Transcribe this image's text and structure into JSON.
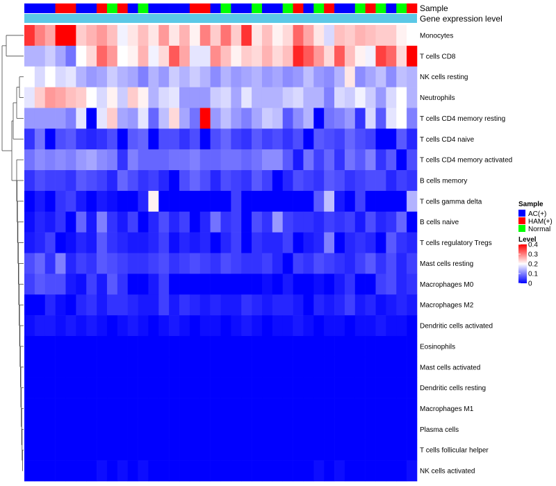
{
  "chart_data": {
    "type": "heatmap",
    "annotation_labels": [
      "Sample",
      "Gene expression level"
    ],
    "sample_groups": [
      "A",
      "A",
      "A",
      "H",
      "H",
      "A",
      "A",
      "H",
      "N",
      "H",
      "A",
      "N",
      "A",
      "A",
      "A",
      "A",
      "H",
      "H",
      "A",
      "N",
      "A",
      "A",
      "N",
      "A",
      "A",
      "N",
      "H",
      "A",
      "N",
      "H",
      "A",
      "A",
      "N",
      "H",
      "N",
      "A",
      "N",
      "H"
    ],
    "rows": [
      "Monocytes",
      "T cells CD8",
      "NK cells resting",
      "Neutrophils",
      "T cells CD4 memory resting",
      "T cells CD4 naive",
      "T cells CD4 memory activated",
      "B cells memory",
      "T cells gamma delta",
      "B cells naive",
      "T cells regulatory  Tregs",
      "Mast cells resting",
      "Macrophages M0",
      "Macrophages M2",
      "Dendritic cells activated",
      "Eosinophils",
      "Mast cells activated",
      "Dendritic cells resting",
      "Macrophages M1",
      "Plasma cells",
      "T cells follicular helper",
      "NK cells activated"
    ],
    "values": [
      [
        0.36,
        0.3,
        0.27,
        0.4,
        0.4,
        0.24,
        0.26,
        0.28,
        0.25,
        0.19,
        0.22,
        0.25,
        0.22,
        0.28,
        0.22,
        0.26,
        0.21,
        0.3,
        0.24,
        0.31,
        0.24,
        0.36,
        0.22,
        0.25,
        0.21,
        0.23,
        0.32,
        0.27,
        0.22,
        0.17,
        0.25,
        0.24,
        0.26,
        0.25,
        0.24,
        0.24,
        0.21,
        0.2
      ],
      [
        0.14,
        0.14,
        0.16,
        0.13,
        0.09,
        0.2,
        0.23,
        0.32,
        0.28,
        0.2,
        0.21,
        0.26,
        0.19,
        0.23,
        0.33,
        0.27,
        0.18,
        0.18,
        0.29,
        0.25,
        0.21,
        0.24,
        0.23,
        0.26,
        0.23,
        0.25,
        0.37,
        0.33,
        0.28,
        0.23,
        0.33,
        0.25,
        0.21,
        0.19,
        0.35,
        0.32,
        0.23,
        0.4
      ],
      [
        0.2,
        0.17,
        0.2,
        0.17,
        0.18,
        0.14,
        0.12,
        0.13,
        0.16,
        0.14,
        0.13,
        0.1,
        0.14,
        0.12,
        0.16,
        0.14,
        0.16,
        0.14,
        0.11,
        0.14,
        0.12,
        0.13,
        0.14,
        0.12,
        0.13,
        0.11,
        0.12,
        0.15,
        0.12,
        0.11,
        0.14,
        0.22,
        0.11,
        0.13,
        0.15,
        0.11,
        0.15,
        0.14
      ],
      [
        0.18,
        0.24,
        0.28,
        0.27,
        0.25,
        0.24,
        0.2,
        0.17,
        0.21,
        0.16,
        0.24,
        0.21,
        0.14,
        0.17,
        0.18,
        0.12,
        0.12,
        0.12,
        0.16,
        0.17,
        0.13,
        0.18,
        0.14,
        0.14,
        0.14,
        0.16,
        0.17,
        0.14,
        0.14,
        0.1,
        0.17,
        0.16,
        0.19,
        0.16,
        0.12,
        0.17,
        0.2,
        0.14
      ],
      [
        0.12,
        0.12,
        0.12,
        0.12,
        0.1,
        0.18,
        0.0,
        0.18,
        0.24,
        0.13,
        0.12,
        0.18,
        0.08,
        0.15,
        0.23,
        0.13,
        0.09,
        0.4,
        0.12,
        0.15,
        0.12,
        0.1,
        0.13,
        0.16,
        0.15,
        0.07,
        0.11,
        0.14,
        0.0,
        0.09,
        0.1,
        0.12,
        0.04,
        0.17,
        0.07,
        0.18,
        0.2,
        0.1
      ],
      [
        0.04,
        0.09,
        0.0,
        0.06,
        0.07,
        0.04,
        0.03,
        0.04,
        0.06,
        0.0,
        0.07,
        0.08,
        0.0,
        0.06,
        0.06,
        0.04,
        0.06,
        0.0,
        0.06,
        0.08,
        0.05,
        0.04,
        0.07,
        0.05,
        0.06,
        0.04,
        0.06,
        0.0,
        0.07,
        0.06,
        0.05,
        0.08,
        0.06,
        0.05,
        0.0,
        0.0,
        0.07,
        0.03
      ],
      [
        0.09,
        0.11,
        0.1,
        0.11,
        0.1,
        0.12,
        0.13,
        0.11,
        0.1,
        0.04,
        0.1,
        0.08,
        0.08,
        0.08,
        0.09,
        0.09,
        0.1,
        0.08,
        0.08,
        0.09,
        0.09,
        0.08,
        0.09,
        0.11,
        0.11,
        0.07,
        0.02,
        0.09,
        0.05,
        0.08,
        0.04,
        0.09,
        0.07,
        0.1,
        0.04,
        0.07,
        0.0,
        0.06
      ],
      [
        0.04,
        0.06,
        0.05,
        0.05,
        0.04,
        0.07,
        0.06,
        0.05,
        0.03,
        0.08,
        0.06,
        0.04,
        0.05,
        0.03,
        0.0,
        0.06,
        0.08,
        0.06,
        0.03,
        0.06,
        0.05,
        0.04,
        0.07,
        0.05,
        0.0,
        0.03,
        0.06,
        0.05,
        0.04,
        0.07,
        0.06,
        0.04,
        0.05,
        0.06,
        0.06,
        0.03,
        0.05,
        0.04
      ],
      [
        0.0,
        0.02,
        0.0,
        0.04,
        0.05,
        0.02,
        0.0,
        0.02,
        0.01,
        0.0,
        0.0,
        0.03,
        0.21,
        0.0,
        0.0,
        0.0,
        0.0,
        0.0,
        0.0,
        0.0,
        0.05,
        0.0,
        0.0,
        0.0,
        0.0,
        0.0,
        0.0,
        0.0,
        0.07,
        0.15,
        0.02,
        0.0,
        0.05,
        0.0,
        0.0,
        0.0,
        0.0,
        0.14
      ],
      [
        0.01,
        0.03,
        0.02,
        0.04,
        0.0,
        0.08,
        0.02,
        0.1,
        0.04,
        0.02,
        0.05,
        0.0,
        0.03,
        0.06,
        0.03,
        0.05,
        0.0,
        0.03,
        0.09,
        0.04,
        0.05,
        0.0,
        0.06,
        0.04,
        0.12,
        0.05,
        0.04,
        0.04,
        0.03,
        0.05,
        0.04,
        0.05,
        0.02,
        0.06,
        0.03,
        0.04,
        0.08,
        0.0
      ],
      [
        0.02,
        0.03,
        0.05,
        0.0,
        0.01,
        0.03,
        0.02,
        0.07,
        0.04,
        0.03,
        0.02,
        0.02,
        0.03,
        0.05,
        0.01,
        0.03,
        0.02,
        0.03,
        0.0,
        0.03,
        0.05,
        0.0,
        0.04,
        0.03,
        0.03,
        0.05,
        0.0,
        0.02,
        0.03,
        0.1,
        0.0,
        0.03,
        0.04,
        0.03,
        0.0,
        0.07,
        0.04,
        0.03
      ],
      [
        0.06,
        0.08,
        0.04,
        0.1,
        0.03,
        0.05,
        0.04,
        0.07,
        0.06,
        0.05,
        0.04,
        0.04,
        0.05,
        0.06,
        0.04,
        0.05,
        0.06,
        0.05,
        0.04,
        0.06,
        0.05,
        0.04,
        0.04,
        0.05,
        0.03,
        0.0,
        0.05,
        0.04,
        0.06,
        0.05,
        0.04,
        0.03,
        0.05,
        0.07,
        0.04,
        0.06,
        0.03,
        0.05
      ],
      [
        0.05,
        0.07,
        0.06,
        0.06,
        0.02,
        0.01,
        0.05,
        0.02,
        0.07,
        0.04,
        0.0,
        0.0,
        0.02,
        0.05,
        0.0,
        0.0,
        0.0,
        0.0,
        0.0,
        0.0,
        0.0,
        0.0,
        0.0,
        0.01,
        0.0,
        0.02,
        0.0,
        0.0,
        0.01,
        0.0,
        0.02,
        0.04,
        0.0,
        0.0,
        0.05,
        0.06,
        0.03,
        0.04
      ],
      [
        0.0,
        0.0,
        0.03,
        0.01,
        0.0,
        0.03,
        0.04,
        0.02,
        0.04,
        0.04,
        0.03,
        0.02,
        0.02,
        0.05,
        0.02,
        0.04,
        0.03,
        0.02,
        0.03,
        0.02,
        0.02,
        0.04,
        0.03,
        0.02,
        0.03,
        0.03,
        0.02,
        0.0,
        0.03,
        0.02,
        0.03,
        0.05,
        0.02,
        0.03,
        0.01,
        0.02,
        0.03,
        0.02
      ],
      [
        0.01,
        0.02,
        0.02,
        0.01,
        0.02,
        0.01,
        0.02,
        0.01,
        0.0,
        0.01,
        0.02,
        0.01,
        0.0,
        0.01,
        0.02,
        0.01,
        0.0,
        0.01,
        0.01,
        0.0,
        0.01,
        0.02,
        0.01,
        0.0,
        0.01,
        0.01,
        0.02,
        0.01,
        0.0,
        0.01,
        0.01,
        0.0,
        0.01,
        0.01,
        0.02,
        0.01,
        0.01,
        0.0
      ],
      [
        0,
        0,
        0,
        0,
        0,
        0,
        0,
        0,
        0,
        0,
        0,
        0,
        0,
        0,
        0,
        0,
        0,
        0,
        0,
        0,
        0,
        0,
        0,
        0,
        0,
        0,
        0,
        0,
        0,
        0,
        0,
        0,
        0,
        0,
        0,
        0,
        0,
        0
      ],
      [
        0,
        0,
        0,
        0,
        0,
        0,
        0,
        0,
        0,
        0,
        0,
        0,
        0,
        0,
        0,
        0,
        0,
        0,
        0,
        0,
        0,
        0,
        0,
        0,
        0,
        0,
        0,
        0,
        0,
        0,
        0,
        0,
        0,
        0,
        0,
        0,
        0,
        0
      ],
      [
        0,
        0,
        0,
        0,
        0,
        0,
        0,
        0,
        0,
        0,
        0,
        0,
        0,
        0,
        0,
        0,
        0,
        0,
        0,
        0,
        0,
        0,
        0,
        0,
        0,
        0,
        0,
        0,
        0,
        0,
        0,
        0,
        0,
        0,
        0,
        0,
        0,
        0
      ],
      [
        0,
        0,
        0,
        0,
        0,
        0,
        0,
        0,
        0,
        0,
        0,
        0,
        0,
        0,
        0,
        0,
        0,
        0,
        0,
        0,
        0,
        0,
        0,
        0,
        0,
        0,
        0,
        0,
        0,
        0,
        0,
        0,
        0,
        0,
        0,
        0,
        0,
        0
      ],
      [
        0,
        0,
        0,
        0,
        0,
        0,
        0,
        0,
        0,
        0,
        0,
        0,
        0,
        0,
        0,
        0,
        0,
        0,
        0,
        0,
        0,
        0,
        0,
        0,
        0,
        0,
        0,
        0,
        0,
        0,
        0,
        0,
        0,
        0,
        0,
        0,
        0,
        0
      ],
      [
        0,
        0,
        0,
        0,
        0,
        0,
        0,
        0,
        0,
        0,
        0,
        0,
        0,
        0,
        0,
        0,
        0,
        0,
        0,
        0,
        0,
        0,
        0,
        0,
        0,
        0,
        0,
        0,
        0,
        0,
        0,
        0,
        0,
        0,
        0,
        0,
        0,
        0
      ],
      [
        0.0,
        0.0,
        0.0,
        0.0,
        0.0,
        0.0,
        0.0,
        0.01,
        0.0,
        0.01,
        0.0,
        0.01,
        0.0,
        0.0,
        0.0,
        0.0,
        0.0,
        0.0,
        0.0,
        0.0,
        0.0,
        0.0,
        0.0,
        0.0,
        0.0,
        0.0,
        0.0,
        0.0,
        0.01,
        0.0,
        0.01,
        0.0,
        0.0,
        0.0,
        0.0,
        0.0,
        0.0,
        0.01
      ]
    ],
    "legend_sample": {
      "title": "Sample",
      "entries": [
        {
          "key": "A",
          "label": "AC(+)",
          "color": "#0000ff"
        },
        {
          "key": "H",
          "label": "HAM(+)",
          "color": "#ff0000"
        },
        {
          "key": "N",
          "label": "Normal",
          "color": "#00ff00"
        }
      ]
    },
    "legend_level": {
      "title": "Level",
      "ticks": [
        "0.4",
        "0.3",
        "0.2",
        "0.1",
        "0"
      ],
      "tick_values": [
        0.4,
        0.3,
        0.2,
        0.1,
        0.0
      ],
      "range": [
        0,
        0.4
      ]
    },
    "colors": {
      "low": "#0000ff",
      "mid": "#ffffff",
      "high": "#ff0000",
      "expression_annotation": "#5bc8e6"
    }
  }
}
